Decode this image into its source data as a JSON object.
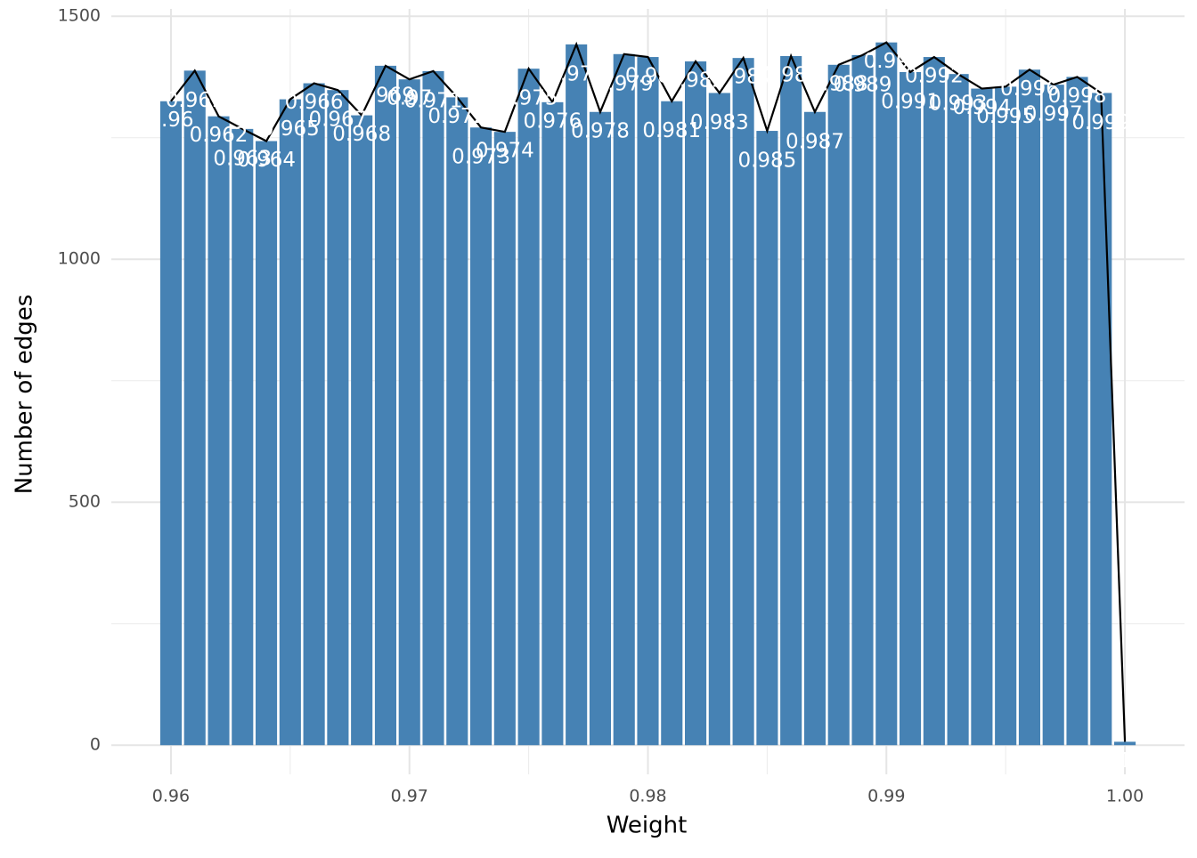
{
  "chart_data": {
    "type": "bar",
    "x_label": "Weight",
    "y_label": "Number of edges",
    "x": [
      0.96,
      0.961,
      0.962,
      0.963,
      0.964,
      0.965,
      0.966,
      0.967,
      0.968,
      0.969,
      0.97,
      0.971,
      0.972,
      0.973,
      0.974,
      0.975,
      0.976,
      0.977,
      0.978,
      0.979,
      0.98,
      0.981,
      0.982,
      0.983,
      0.984,
      0.985,
      0.986,
      0.987,
      0.988,
      0.989,
      0.99,
      0.991,
      0.992,
      0.993,
      0.994,
      0.995,
      0.996,
      0.997,
      0.998,
      0.999,
      1
    ],
    "values": [
      1325,
      1388,
      1294,
      1268,
      1243,
      1329,
      1362,
      1348,
      1296,
      1398,
      1370,
      1387,
      1333,
      1271,
      1262,
      1392,
      1323,
      1442,
      1303,
      1422,
      1416,
      1325,
      1407,
      1342,
      1414,
      1264,
      1418,
      1303,
      1400,
      1420,
      1446,
      1385,
      1416,
      1381,
      1351,
      1355,
      1390,
      1359,
      1375,
      1342,
      7
    ],
    "color": "#4682b4",
    "line_color": "#000000",
    "xlim": [
      0.9575,
      1.0025
    ],
    "ylim": [
      -60,
      1515
    ],
    "xticks": [
      0.96,
      0.97,
      0.98,
      0.99,
      {
        "value": 1,
        "label": "1.00"
      }
    ],
    "yticks": [
      0,
      500,
      1000,
      1500
    ],
    "grid": true
  }
}
